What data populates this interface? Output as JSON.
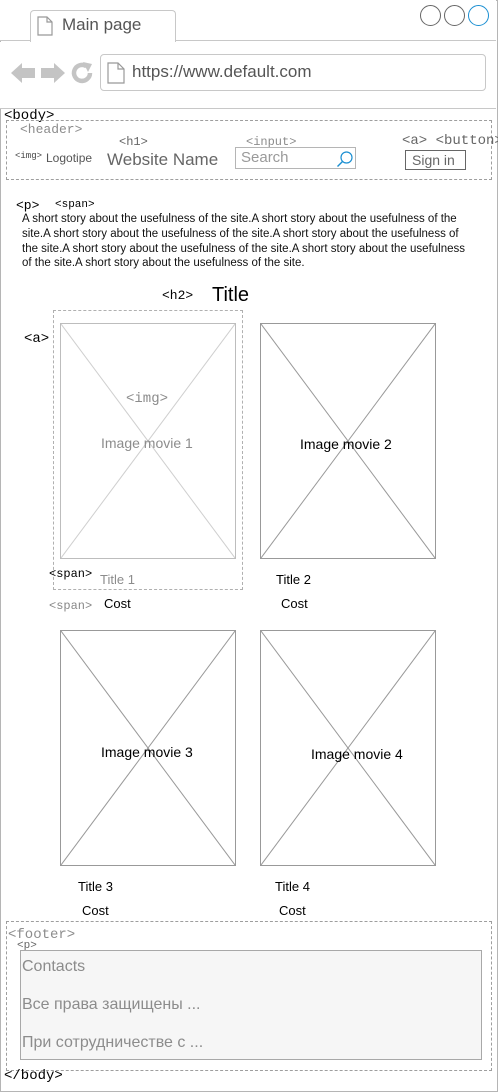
{
  "browser": {
    "tab_title": "Main page",
    "url": "https://www.default.com",
    "window_buttons": [
      "circle",
      "circle",
      "circle-blue"
    ],
    "nav_icons": [
      "back-arrow-icon",
      "forward-arrow-icon",
      "reload-icon",
      "page-icon"
    ]
  },
  "tags": {
    "body_open": "<body>",
    "body_close": "</body>",
    "header": "<header>",
    "h1": "<h1>",
    "input": "<input>",
    "a_button": "<a> <button>",
    "img_small": "<img>",
    "p": "<p>",
    "span": "<span>",
    "h2": "<h2>",
    "a": "<a>",
    "img": "<img>",
    "span_title": "<span>",
    "span_cost": "<span>",
    "footer": "<footer>",
    "footer_p": "<p>"
  },
  "header": {
    "logo": "Logotipe",
    "site_name": "Website Name",
    "search_placeholder": "Search",
    "signin": "Sign in"
  },
  "intro_text": "A  short story about the usefulness of the site.A  short story about the usefulness of the site.A  short story about the usefulness of the site.A  short story about the usefulness of the site.A  short story about the usefulness of the site.A  short story about the usefulness of the site.A  short story about the usefulness of the site.",
  "section_title": "Title",
  "movies": [
    {
      "image": "Image movie 1",
      "title": "Title 1",
      "cost": "Cost"
    },
    {
      "image": "Image movie 2",
      "title": "Title 2",
      "cost": "Cost"
    },
    {
      "image": "Image movie 3",
      "title": "Title 3",
      "cost": "Cost"
    },
    {
      "image": "Image movie 4",
      "title": "Title 4",
      "cost": "Cost"
    }
  ],
  "footer": {
    "lines": [
      "Contacts",
      "Все права защищены ...",
      "При сотрудничестве с ..."
    ]
  },
  "colors": {
    "frame_border": "#b5b5b5",
    "dashed": "#9e9e9e",
    "muted_text": "#8c8c8c",
    "accent_blue": "#1b8fd2",
    "icon_gray": "#c4c4c4"
  }
}
